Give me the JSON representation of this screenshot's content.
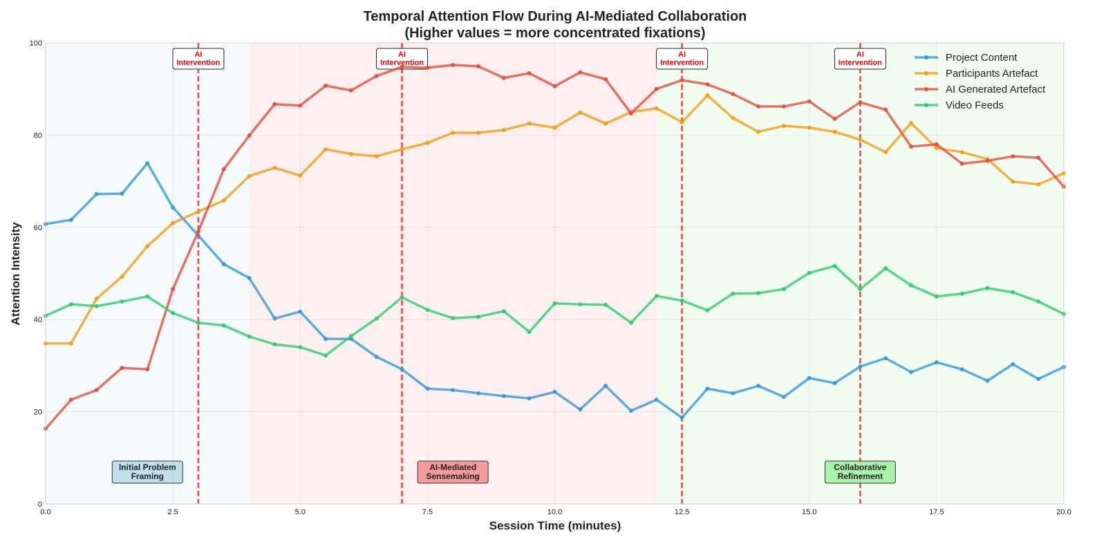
{
  "chart_data": {
    "type": "line",
    "title": "Temporal Attention Flow During AI-Mediated Collaboration",
    "subtitle": "(Higher values = more concentrated fixations)",
    "xlabel": "Session Time (minutes)",
    "ylabel": "Attention Intensity",
    "xlim": [
      0,
      20
    ],
    "ylim": [
      0,
      100
    ],
    "xticks": [
      0,
      2.5,
      5,
      7.5,
      10,
      12.5,
      15,
      17.5,
      20
    ],
    "xtick_labels": [
      "0.0",
      "2.5",
      "5.0",
      "7.5",
      "10.0",
      "12.5",
      "15.0",
      "17.5",
      "20.0"
    ],
    "yticks": [
      0,
      20,
      40,
      60,
      80,
      100
    ],
    "ytick_labels": [
      "0",
      "20",
      "40",
      "60",
      "80",
      "100"
    ],
    "grid": true,
    "legend_position": "top-right",
    "x": [
      0,
      0.5,
      1,
      1.5,
      2,
      2.5,
      3,
      3.5,
      4,
      4.5,
      5,
      5.5,
      6,
      6.5,
      7,
      7.5,
      8,
      8.5,
      9,
      9.5,
      10,
      10.5,
      11,
      11.5,
      12,
      12.5,
      13,
      13.5,
      14,
      14.5,
      15,
      15.5,
      16,
      16.5,
      17,
      17.5,
      18,
      18.5,
      19,
      19.5,
      20
    ],
    "series": [
      {
        "name": "Project Content",
        "color": "#3498db",
        "values": [
          60.7,
          61.6,
          67.2,
          67.3,
          73.9,
          64.3,
          58.2,
          52.0,
          49.0,
          40.2,
          41.7,
          35.8,
          35.8,
          31.9,
          29.2,
          25.0,
          24.7,
          24.0,
          23.4,
          22.9,
          24.3,
          20.5,
          25.6,
          20.2,
          22.6,
          18.7,
          25.0,
          24.0,
          25.6,
          23.2,
          27.3,
          26.2,
          29.8,
          31.6,
          28.6,
          30.7,
          29.2,
          26.7,
          30.3,
          27.1,
          29.7
        ]
      },
      {
        "name": "Participants Artefact",
        "color": "#f39c12",
        "values": [
          34.8,
          34.8,
          44.5,
          49.3,
          55.9,
          60.9,
          63.4,
          65.8,
          71.1,
          72.9,
          71.2,
          76.9,
          75.9,
          75.4,
          76.9,
          78.3,
          80.5,
          80.5,
          81.1,
          82.5,
          81.6,
          84.9,
          82.5,
          85.0,
          85.8,
          82.8,
          88.6,
          83.7,
          80.7,
          82.0,
          81.6,
          80.7,
          79.0,
          76.3,
          82.6,
          77.2,
          76.3,
          74.8,
          69.9,
          69.3,
          71.7
        ]
      },
      {
        "name": "AI Generated Artefact",
        "color": "#e74c3c",
        "values": [
          16.3,
          22.6,
          24.7,
          29.5,
          29.2,
          46.6,
          59.1,
          72.6,
          79.9,
          86.7,
          86.4,
          90.7,
          89.7,
          92.8,
          94.8,
          94.6,
          95.2,
          94.9,
          92.4,
          93.4,
          90.6,
          93.6,
          92.1,
          84.7,
          90.0,
          91.9,
          91.0,
          88.9,
          86.2,
          86.2,
          87.3,
          83.5,
          87.1,
          85.5,
          77.5,
          78.0,
          73.8,
          74.4,
          75.4,
          75.1,
          68.8
        ]
      },
      {
        "name": "Video Feeds",
        "color": "#2ecc71",
        "values": [
          40.8,
          43.3,
          42.9,
          43.9,
          45.0,
          41.4,
          39.3,
          38.7,
          36.3,
          34.6,
          34.0,
          32.2,
          36.4,
          40.2,
          44.8,
          42.1,
          40.3,
          40.6,
          41.8,
          37.3,
          43.5,
          43.3,
          43.2,
          39.3,
          45.1,
          44.1,
          42.0,
          45.6,
          45.7,
          46.6,
          50.1,
          51.6,
          46.6,
          51.1,
          47.4,
          45.0,
          45.6,
          46.8,
          45.9,
          43.9,
          41.2
        ]
      }
    ],
    "phases": [
      {
        "start": 0,
        "end": 4,
        "label": "Initial Problem Framing",
        "color": "#add8e6",
        "label_x": 2
      },
      {
        "start": 4,
        "end": 12,
        "label": "AI-Mediated Sensemaking",
        "color": "#f08080",
        "label_x": 8
      },
      {
        "start": 12,
        "end": 20,
        "label": "Collaborative Refinement",
        "color": "#90ee90",
        "label_x": 16
      }
    ],
    "interventions": {
      "label": "AI Intervention",
      "times": [
        3,
        7,
        12.5,
        16
      ],
      "color": "#ff0000"
    }
  }
}
